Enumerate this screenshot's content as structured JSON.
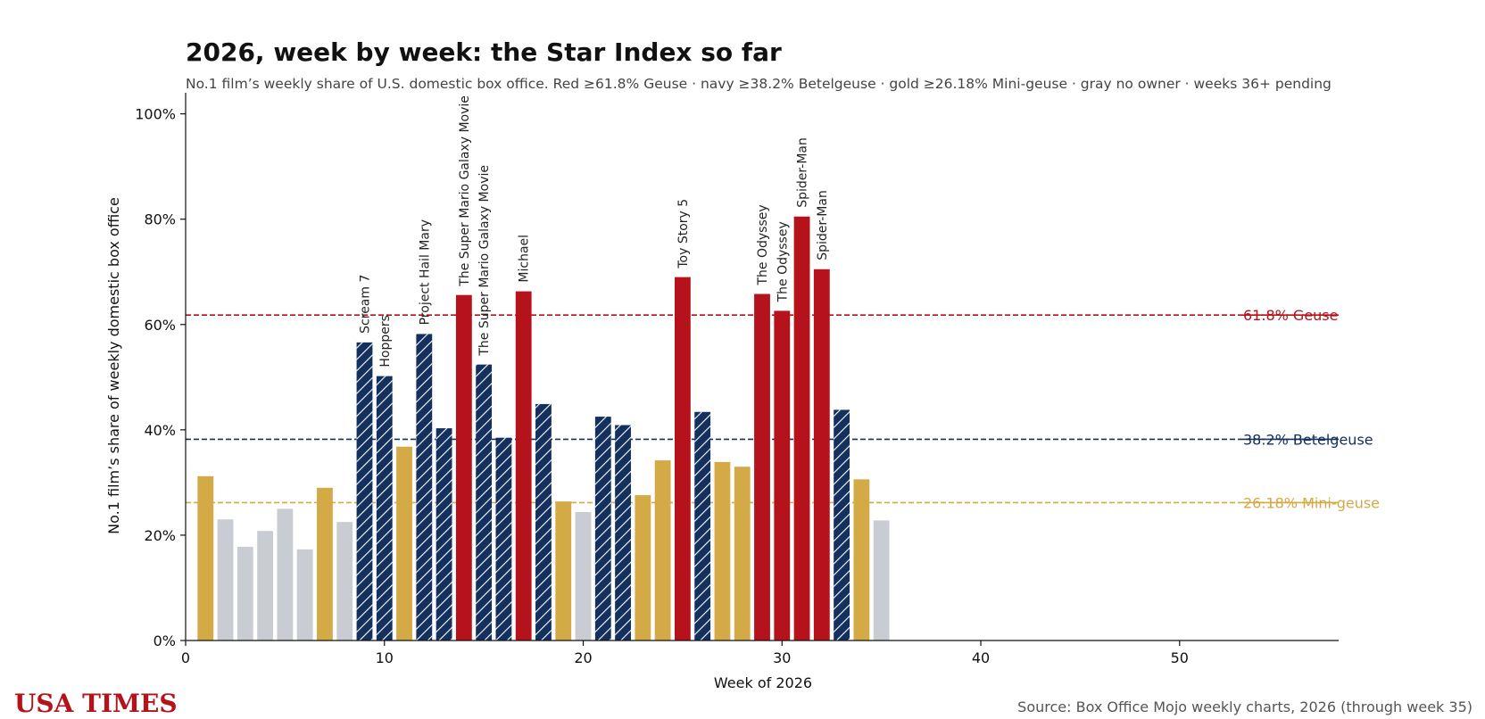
{
  "chart_data": {
    "type": "bar",
    "title": "2026, week by week: the Star Index so far",
    "subtitle": "No.1 film’s weekly share of U.S. domestic box office. Red ≥61.8% Geuse · navy ≥38.2% Betelgeuse · gold ≥26.18% Mini-geuse · gray no owner · weeks 36+ pending",
    "xlabel": "Week of 2026",
    "ylabel": "No.1 film’s share of weekly domestic box office",
    "xlim": [
      0,
      58
    ],
    "ylim": [
      0,
      104
    ],
    "x_ticks": [
      0,
      10,
      20,
      30,
      40,
      50
    ],
    "y_ticks": [
      0,
      20,
      40,
      60,
      80,
      100
    ],
    "y_tick_labels": [
      "0%",
      "20%",
      "40%",
      "60%",
      "80%",
      "100%"
    ],
    "grid": false,
    "colors": {
      "geuse": "#b5121b",
      "betelgeuse": "#14305e",
      "mini_geuse": "#d4aa47",
      "none": "#c9ccd3"
    },
    "thresholds": [
      {
        "value": 61.8,
        "label": "61.8% Geuse",
        "color": "#b5121b"
      },
      {
        "value": 38.2,
        "label": "38.2% Betelgeuse",
        "color": "#14305e"
      },
      {
        "value": 26.18,
        "label": "26.18% Mini-geuse",
        "color": "#d4aa47"
      }
    ],
    "bars": [
      {
        "week": 1,
        "value": 31.2,
        "tier": "mini_geuse",
        "label": ""
      },
      {
        "week": 2,
        "value": 23.0,
        "tier": "none",
        "label": ""
      },
      {
        "week": 3,
        "value": 17.8,
        "tier": "none",
        "label": ""
      },
      {
        "week": 4,
        "value": 20.8,
        "tier": "none",
        "label": ""
      },
      {
        "week": 5,
        "value": 25.0,
        "tier": "none",
        "label": ""
      },
      {
        "week": 6,
        "value": 17.3,
        "tier": "none",
        "label": ""
      },
      {
        "week": 7,
        "value": 29.0,
        "tier": "mini_geuse",
        "label": ""
      },
      {
        "week": 8,
        "value": 22.5,
        "tier": "none",
        "label": ""
      },
      {
        "week": 9,
        "value": 56.6,
        "tier": "betelgeuse",
        "label": "Scream 7"
      },
      {
        "week": 10,
        "value": 50.2,
        "tier": "betelgeuse",
        "label": "Hoppers"
      },
      {
        "week": 11,
        "value": 36.8,
        "tier": "mini_geuse",
        "label": ""
      },
      {
        "week": 12,
        "value": 58.2,
        "tier": "betelgeuse",
        "label": "Project Hail Mary"
      },
      {
        "week": 13,
        "value": 40.3,
        "tier": "betelgeuse",
        "label": ""
      },
      {
        "week": 14,
        "value": 65.6,
        "tier": "geuse",
        "label": "The Super Mario Galaxy Movie"
      },
      {
        "week": 15,
        "value": 52.4,
        "tier": "betelgeuse",
        "label": "The Super Mario Galaxy Movie"
      },
      {
        "week": 16,
        "value": 38.5,
        "tier": "betelgeuse",
        "label": ""
      },
      {
        "week": 17,
        "value": 66.3,
        "tier": "geuse",
        "label": "Michael"
      },
      {
        "week": 18,
        "value": 44.9,
        "tier": "betelgeuse",
        "label": ""
      },
      {
        "week": 19,
        "value": 26.4,
        "tier": "mini_geuse",
        "label": ""
      },
      {
        "week": 20,
        "value": 24.4,
        "tier": "none",
        "label": ""
      },
      {
        "week": 21,
        "value": 42.5,
        "tier": "betelgeuse",
        "label": ""
      },
      {
        "week": 22,
        "value": 40.9,
        "tier": "betelgeuse",
        "label": ""
      },
      {
        "week": 23,
        "value": 27.6,
        "tier": "mini_geuse",
        "label": ""
      },
      {
        "week": 24,
        "value": 34.2,
        "tier": "mini_geuse",
        "label": ""
      },
      {
        "week": 25,
        "value": 69.0,
        "tier": "geuse",
        "label": "Toy Story 5"
      },
      {
        "week": 26,
        "value": 43.4,
        "tier": "betelgeuse",
        "label": ""
      },
      {
        "week": 27,
        "value": 33.9,
        "tier": "mini_geuse",
        "label": ""
      },
      {
        "week": 28,
        "value": 33.0,
        "tier": "mini_geuse",
        "label": ""
      },
      {
        "week": 29,
        "value": 65.8,
        "tier": "geuse",
        "label": "The Odyssey"
      },
      {
        "week": 30,
        "value": 62.6,
        "tier": "geuse",
        "label": "The Odyssey"
      },
      {
        "week": 31,
        "value": 80.5,
        "tier": "geuse",
        "label": "Spider-Man"
      },
      {
        "week": 32,
        "value": 70.5,
        "tier": "geuse",
        "label": "Spider-Man"
      },
      {
        "week": 33,
        "value": 43.8,
        "tier": "betelgeuse",
        "label": ""
      },
      {
        "week": 34,
        "value": 30.6,
        "tier": "mini_geuse",
        "label": ""
      },
      {
        "week": 35,
        "value": 22.8,
        "tier": "none",
        "label": ""
      }
    ]
  },
  "source": "Source: Box Office Mojo weekly charts, 2026 (through week 35)",
  "logo": "USA TIMES",
  "logo_color": "#b5121b"
}
